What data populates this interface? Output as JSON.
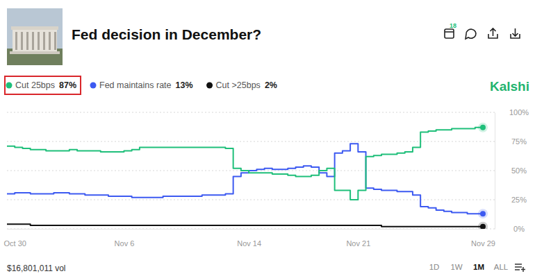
{
  "header": {
    "badge": "18",
    "brand": "Kalshi"
  },
  "chart_data": {
    "type": "line",
    "title": "Fed decision in December?",
    "categories": [
      null,
      "Oct 30",
      null,
      null,
      null,
      null,
      null,
      null,
      null,
      null,
      null,
      null,
      null,
      null,
      null,
      "Nov 6",
      null,
      null,
      null,
      null,
      null,
      null,
      null,
      null,
      null,
      null,
      null,
      null,
      null,
      null,
      null,
      "Nov 14",
      null,
      null,
      null,
      null,
      null,
      null,
      null,
      null,
      null,
      null,
      null,
      null,
      null,
      "Nov 21",
      null,
      null,
      null,
      null,
      null,
      null,
      null,
      null,
      null,
      null,
      null,
      null,
      null,
      null,
      null,
      "Nov 29"
    ],
    "series": [
      {
        "name": "Cut 25bps",
        "color": "#1fbf7a",
        "values": [
          71,
          70,
          69,
          68,
          68,
          67,
          67,
          67,
          68,
          67,
          67,
          67,
          66,
          66,
          66,
          67,
          68,
          70,
          70,
          70,
          70,
          70,
          70,
          70,
          70,
          70,
          70,
          70,
          69,
          52,
          50,
          48,
          48,
          48,
          47,
          47,
          46,
          45,
          45,
          46,
          50,
          52,
          33,
          33,
          25,
          33,
          62,
          63,
          64,
          64,
          65,
          66,
          70,
          83,
          84,
          85,
          85,
          86,
          86,
          86,
          87,
          87
        ],
        "current": {
          "value": 87,
          "label": "87%"
        }
      },
      {
        "name": "Fed maintains rate",
        "color": "#3d5af1",
        "values": [
          30,
          31,
          31,
          30,
          30,
          30,
          31,
          31,
          30,
          30,
          29,
          29,
          29,
          28,
          28,
          28,
          27,
          27,
          27,
          27,
          28,
          28,
          28,
          28,
          28,
          29,
          29,
          29,
          30,
          45,
          48,
          50,
          51,
          52,
          51,
          51,
          52,
          53,
          54,
          53,
          48,
          45,
          65,
          67,
          73,
          66,
          35,
          34,
          33,
          33,
          32,
          32,
          29,
          19,
          18,
          16,
          15,
          14,
          14,
          13,
          13,
          13
        ],
        "current": {
          "value": 13,
          "label": "13%"
        }
      },
      {
        "name": "Cut >25bps",
        "color": "#111111",
        "values": [
          4,
          4,
          4,
          3,
          3,
          3,
          3,
          3,
          3,
          3,
          3,
          3,
          3,
          3,
          3,
          3,
          3,
          3,
          3,
          3,
          3,
          3,
          3,
          3,
          3,
          3,
          3,
          3,
          3,
          3,
          3,
          3,
          3,
          3,
          3,
          3,
          3,
          3,
          3,
          3,
          3,
          3,
          3,
          3,
          3,
          3,
          3,
          3,
          2,
          2,
          2,
          2,
          2,
          2,
          2,
          2,
          2,
          2,
          2,
          2,
          2,
          2
        ],
        "current": {
          "value": 2,
          "label": "2%"
        }
      }
    ],
    "ylim": [
      0,
      100
    ],
    "yticks": [
      {
        "value": 0,
        "label": "0%"
      },
      {
        "value": 25,
        "label": "25%"
      },
      {
        "value": 50,
        "label": "50%"
      },
      {
        "value": 75,
        "label": "75%"
      },
      {
        "value": 100,
        "label": "100%"
      }
    ],
    "grid": true
  },
  "footer": {
    "volume": "$16,801,011 vol",
    "ranges": [
      "1D",
      "1W",
      "1M",
      "ALL"
    ],
    "selected_range": "1M"
  }
}
